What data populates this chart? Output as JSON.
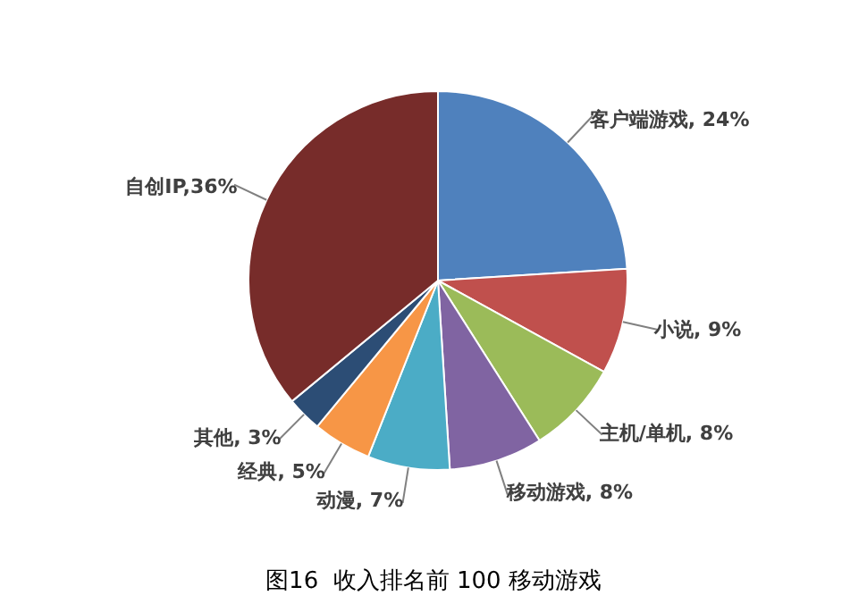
{
  "chart_data": {
    "type": "pie",
    "title": "图16  收入排名前 100 移动游戏",
    "categories": [
      "客户端游戏",
      "小说",
      "主机/单机",
      "移动游戏",
      "动漫",
      "经典",
      "其他",
      "自创IP"
    ],
    "values": [
      24,
      9,
      8,
      8,
      7,
      5,
      3,
      36
    ],
    "colors": [
      "#4f81bd",
      "#c0504d",
      "#9bbb59",
      "#8064a2",
      "#4bacc6",
      "#f79646",
      "#2c4d75",
      "#772c2a"
    ],
    "value_labels": [
      ", 24%",
      ", 9%",
      ", 8%",
      ", 8%",
      ", 7%",
      ", 5%",
      ", 3%",
      ",36%"
    ],
    "legend": false
  }
}
